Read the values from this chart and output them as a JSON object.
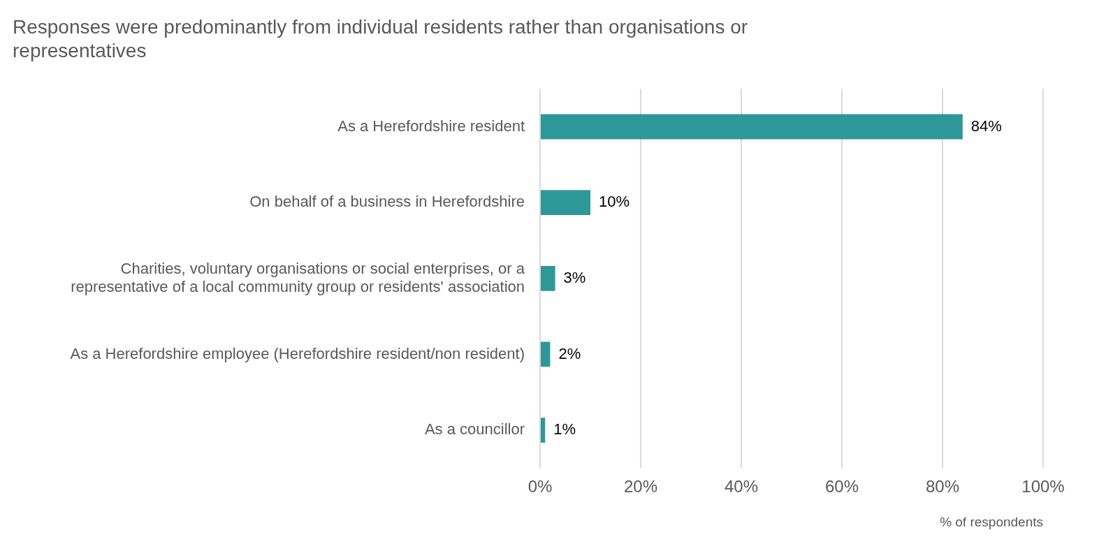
{
  "chart_data": {
    "type": "bar",
    "orientation": "horizontal",
    "title": "Responses were predominantly from individual residents rather than organisations or representatives",
    "xlabel": "% of respondents",
    "categories": [
      "As a Herefordshire resident",
      "On behalf of a business in Herefordshire",
      "Charities, voluntary organisations or social enterprises, or a representative of a local community group or residents' association",
      "As a Herefordshire employee (Herefordshire resident/non resident)",
      "As a councillor"
    ],
    "values": [
      84,
      10,
      3,
      2,
      1
    ],
    "value_labels": [
      "84%",
      "10%",
      "3%",
      "2%",
      "1%"
    ],
    "color": "#2e9898",
    "xlim": [
      0,
      100
    ],
    "xticks": [
      {
        "value": 0,
        "label": "0%"
      },
      {
        "value": 20,
        "label": "20%"
      },
      {
        "value": 40,
        "label": "40%"
      },
      {
        "value": 60,
        "label": "60%"
      },
      {
        "value": 80,
        "label": "80%"
      },
      {
        "value": 100,
        "label": "100%"
      }
    ],
    "grid": "x",
    "legend": false
  }
}
